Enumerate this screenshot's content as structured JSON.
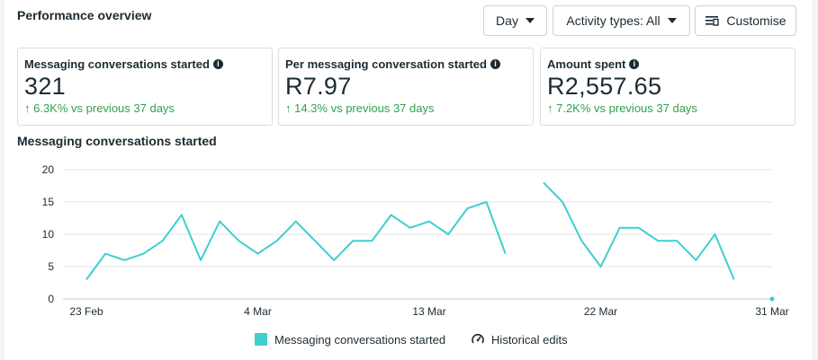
{
  "header": {
    "title": "Performance overview",
    "day_label": "Day",
    "activity_label": "Activity types: All",
    "customise_label": "Customise"
  },
  "cards": [
    {
      "label": "Messaging conversations started",
      "value": "321",
      "change": "↑ 6.3K% vs previous 37 days"
    },
    {
      "label": "Per messaging conversation started",
      "value": "R7.97",
      "change": "↑ 14.3% vs previous 37 days"
    },
    {
      "label": "Amount spent",
      "value": "R2,557.65",
      "change": "↑ 7.2K% vs previous 37 days"
    }
  ],
  "chart_title": "Messaging conversations started",
  "colors": {
    "series": "#3ecfcf",
    "positive": "#31a24c",
    "grid": "#e4e6eb"
  },
  "legend": {
    "series_label": "Messaging conversations started",
    "historical_label": "Historical edits"
  },
  "chart_data": {
    "type": "line",
    "ylim": [
      0,
      20
    ],
    "yticks": [
      "0",
      "5",
      "10",
      "15",
      "20"
    ],
    "xticks": [
      {
        "label": "23 Feb",
        "index": 0
      },
      {
        "label": "4 Mar",
        "index": 9
      },
      {
        "label": "13 Mar",
        "index": 18
      },
      {
        "label": "22 Mar",
        "index": 27
      },
      {
        "label": "31 Mar",
        "index": 36
      }
    ],
    "series": [
      {
        "values": [
          3,
          7,
          6,
          7,
          9,
          13,
          6,
          12,
          9,
          7,
          9,
          12,
          9,
          6,
          9,
          9,
          13,
          11,
          12,
          10,
          14,
          15,
          7,
          null,
          18,
          15,
          9,
          5,
          11,
          11,
          9,
          9,
          6,
          10,
          3,
          null,
          0
        ]
      }
    ]
  }
}
